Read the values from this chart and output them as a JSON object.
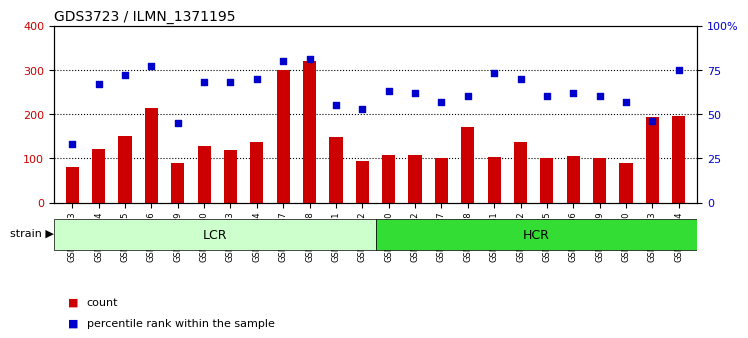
{
  "title": "GDS3723 / ILMN_1371195",
  "categories": [
    "GSM429923",
    "GSM429924",
    "GSM429925",
    "GSM429926",
    "GSM429929",
    "GSM429930",
    "GSM429933",
    "GSM429934",
    "GSM429937",
    "GSM429938",
    "GSM429941",
    "GSM429942",
    "GSM429920",
    "GSM429922",
    "GSM429927",
    "GSM429928",
    "GSM429931",
    "GSM429932",
    "GSM429935",
    "GSM429936",
    "GSM429939",
    "GSM429940",
    "GSM429943",
    "GSM429944"
  ],
  "counts": [
    80,
    122,
    150,
    213,
    90,
    128,
    118,
    137,
    300,
    320,
    148,
    93,
    108,
    108,
    100,
    170,
    103,
    138,
    100,
    105,
    100,
    90,
    193,
    195
  ],
  "percentile_ranks": [
    33,
    67,
    72,
    77,
    45,
    68,
    68,
    70,
    80,
    81,
    55,
    53,
    63,
    62,
    57,
    60,
    73,
    70,
    60,
    62,
    60,
    57,
    46,
    75
  ],
  "bar_color": "#cc0000",
  "dot_color": "#0000cc",
  "lcr_count": 12,
  "hcr_count": 12,
  "lcr_color": "#ccffcc",
  "hcr_color": "#33dd33",
  "ylim_left": [
    0,
    400
  ],
  "ylim_right": [
    0,
    100
  ],
  "yticks_left": [
    0,
    100,
    200,
    300,
    400
  ],
  "yticks_right": [
    0,
    25,
    50,
    75,
    100
  ],
  "ytick_labels_right": [
    "0",
    "25",
    "50",
    "75",
    "100%"
  ],
  "grid_values": [
    100,
    200,
    300
  ],
  "legend_count_label": "count",
  "legend_pct_label": "percentile rank within the sample",
  "strain_label": "strain",
  "lcr_label": "LCR",
  "hcr_label": "HCR"
}
